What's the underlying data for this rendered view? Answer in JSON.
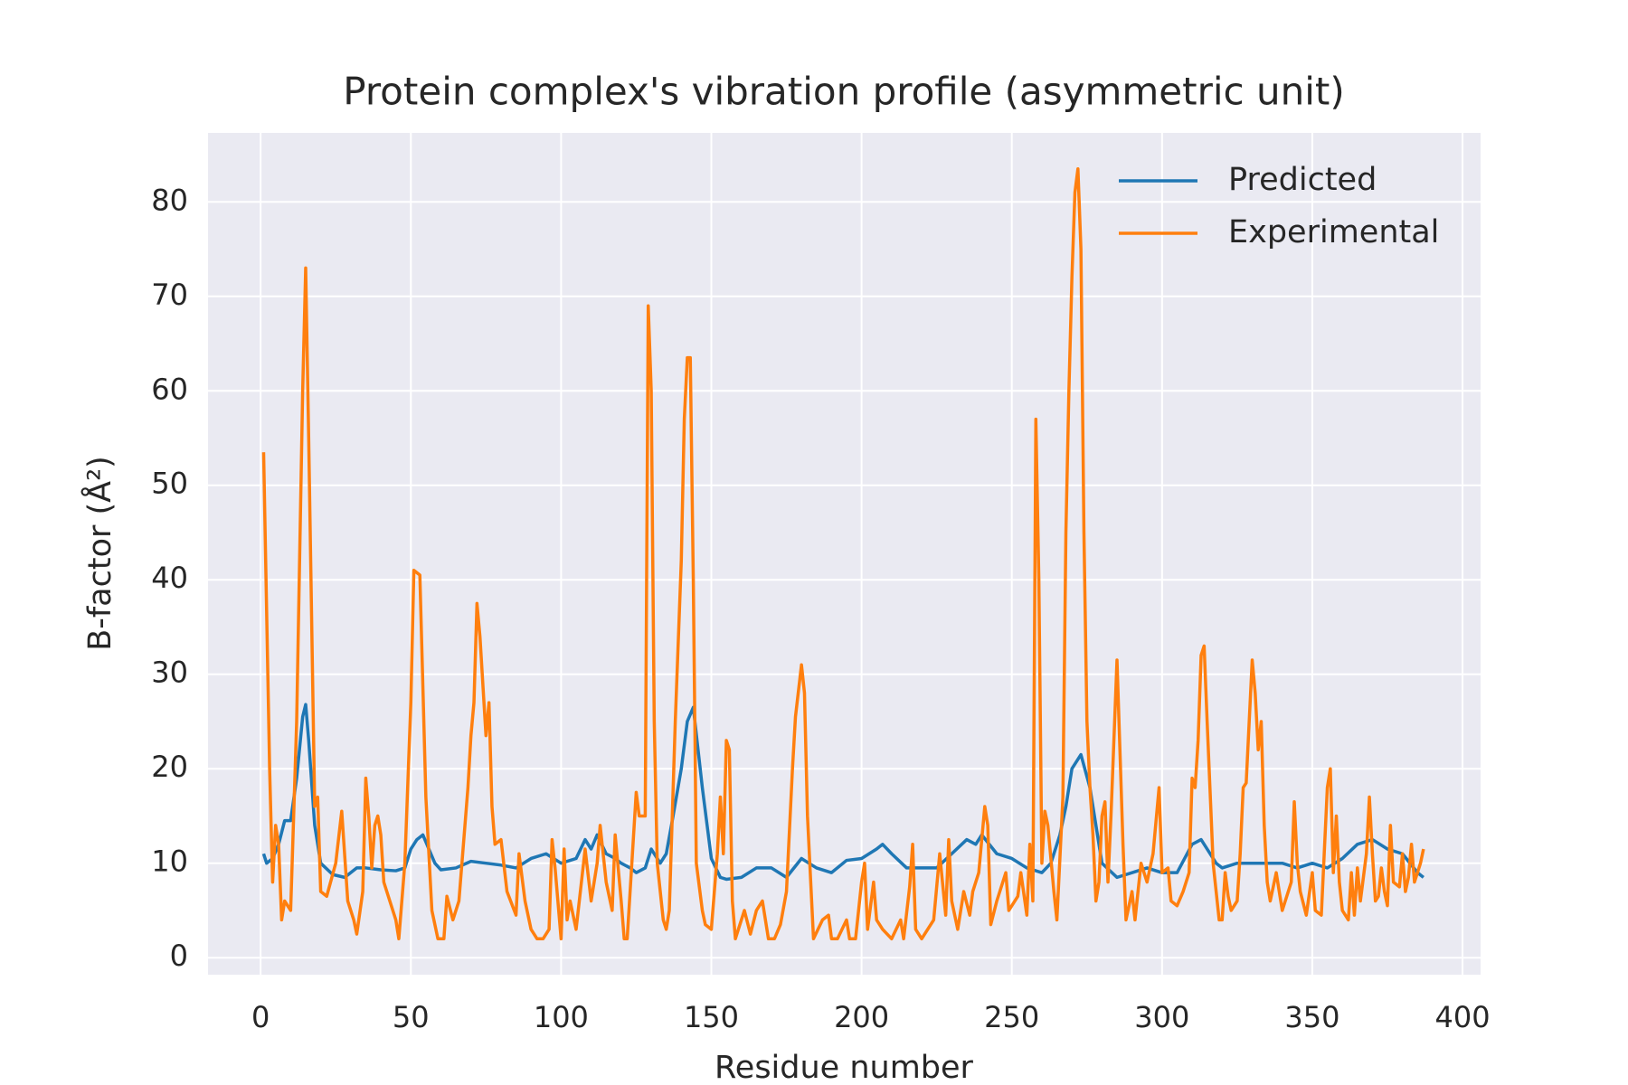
{
  "chart_data": {
    "type": "line",
    "title": "Protein complex's vibration profile (asymmetric unit)",
    "x_label": "Residue number",
    "y_label": "B-factor (Å²)",
    "xlim": [
      -17.5,
      406
    ],
    "ylim": [
      -1.8,
      87.3
    ],
    "xticks": [
      0,
      50,
      100,
      150,
      200,
      250,
      300,
      350,
      400
    ],
    "yticks": [
      0,
      10,
      20,
      30,
      40,
      50,
      60,
      70,
      80
    ],
    "grid": true,
    "legend_position": "upper right",
    "series": [
      {
        "name": "Predicted",
        "color": "#1f77b4",
        "x": [
          1,
          2,
          4,
          6,
          8,
          10,
          12,
          14,
          15,
          16,
          18,
          20,
          24,
          28,
          32,
          35,
          40,
          45,
          48,
          50,
          52,
          54,
          56,
          58,
          60,
          65,
          70,
          75,
          80,
          85,
          90,
          95,
          100,
          105,
          108,
          110,
          112,
          115,
          118,
          120,
          123,
          125,
          128,
          130,
          133,
          135,
          137,
          140,
          142,
          144,
          147,
          150,
          153,
          155,
          160,
          165,
          170,
          175,
          180,
          185,
          190,
          195,
          200,
          205,
          207,
          210,
          215,
          220,
          225,
          230,
          235,
          238,
          240,
          245,
          250,
          255,
          260,
          263,
          266,
          268,
          270,
          273,
          276,
          280,
          285,
          290,
          295,
          300,
          305,
          310,
          313,
          318,
          320,
          325,
          330,
          335,
          340,
          345,
          350,
          355,
          360,
          365,
          370,
          375,
          380,
          385,
          387
        ],
        "values": [
          11,
          10,
          10.5,
          12,
          14.5,
          14.5,
          19,
          25.5,
          26.8,
          23,
          14,
          10,
          8.8,
          8.5,
          9.5,
          9.5,
          9.3,
          9.2,
          9.5,
          11.5,
          12.5,
          13,
          11.5,
          10,
          9.3,
          9.5,
          10.2,
          10,
          9.8,
          9.5,
          10.5,
          11,
          10,
          10.5,
          12.5,
          11.5,
          13,
          11,
          10.5,
          10,
          9.5,
          9,
          9.5,
          11.5,
          10,
          11,
          14.5,
          20,
          25,
          26.5,
          18,
          10.5,
          8.5,
          8.3,
          8.5,
          9.5,
          9.5,
          8.5,
          10.5,
          9.5,
          9,
          10.3,
          10.5,
          11.5,
          12,
          11,
          9.5,
          9.5,
          9.5,
          11,
          12.5,
          12,
          13,
          11,
          10.5,
          9.5,
          9,
          10,
          13,
          16,
          20,
          21.5,
          18,
          10,
          8.5,
          9,
          9.5,
          9,
          9,
          12,
          12.5,
          10,
          9.5,
          10,
          10,
          10,
          10,
          9.5,
          10,
          9.5,
          10.5,
          12,
          12.5,
          11.5,
          11,
          9,
          8.5
        ]
      },
      {
        "name": "Experimental",
        "color": "#ff7f0e",
        "x": [
          1,
          3,
          4,
          5,
          6,
          7,
          8,
          10,
          12,
          14,
          15,
          16,
          18,
          19,
          20,
          22,
          25,
          27,
          29,
          31,
          32,
          34,
          35,
          36,
          37,
          38,
          39,
          40,
          41,
          43,
          45,
          46,
          48,
          50,
          51,
          53,
          55,
          57,
          59,
          61,
          62,
          64,
          66,
          69,
          70,
          71,
          72,
          73,
          75,
          76,
          77,
          78,
          80,
          82,
          85,
          86,
          88,
          90,
          92,
          94,
          96,
          97,
          98,
          100,
          101,
          102,
          103,
          105,
          108,
          110,
          112,
          113,
          115,
          117,
          118,
          120,
          121,
          122,
          125,
          126,
          128,
          129,
          130,
          131,
          132,
          134,
          135,
          136,
          138,
          140,
          141,
          142,
          143,
          144,
          145,
          147,
          148,
          150,
          152,
          153,
          154,
          155,
          156,
          157,
          158,
          161,
          163,
          165,
          167,
          169,
          171,
          173,
          175,
          177,
          178,
          180,
          181,
          182,
          184,
          187,
          189,
          190,
          192,
          195,
          196,
          198,
          200,
          201,
          202,
          204,
          205,
          207,
          210,
          213,
          214,
          216,
          217,
          218,
          220,
          224,
          226,
          228,
          229,
          230,
          232,
          234,
          236,
          237,
          239,
          241,
          242,
          243,
          245,
          248,
          249,
          252,
          253,
          255,
          256,
          257,
          258,
          259,
          260,
          261,
          262,
          264,
          265,
          267,
          268,
          269,
          270,
          271,
          272,
          273,
          274,
          275,
          276,
          277,
          278,
          279,
          280,
          281,
          282,
          283,
          285,
          287,
          288,
          290,
          291,
          293,
          295,
          297,
          299,
          300,
          302,
          303,
          305,
          307,
          309,
          310,
          311,
          312,
          313,
          314,
          315,
          317,
          318,
          319,
          320,
          321,
          322,
          323,
          325,
          326,
          327,
          328,
          329,
          330,
          331,
          332,
          333,
          334,
          335,
          336,
          338,
          339,
          340,
          341,
          343,
          344,
          345,
          346,
          348,
          350,
          351,
          353,
          355,
          356,
          357,
          358,
          359,
          360,
          362,
          363,
          364,
          365,
          366,
          368,
          369,
          370,
          371,
          372,
          373,
          374,
          375,
          376,
          377,
          379,
          380,
          381,
          382,
          383,
          384,
          386,
          387
        ],
        "values": [
          53.5,
          20,
          8,
          14,
          12,
          4,
          6,
          5,
          25,
          60,
          73,
          55,
          16,
          17,
          7,
          6.5,
          10,
          15.5,
          6,
          4,
          2.5,
          7,
          19,
          15,
          9.5,
          14,
          15,
          13,
          8,
          6,
          4,
          2,
          10,
          27,
          41,
          40.5,
          17,
          5,
          2,
          2,
          6.5,
          4,
          6,
          18,
          23.5,
          27,
          37.5,
          34,
          23.5,
          27,
          16,
          12,
          12.5,
          7,
          4.5,
          11,
          6,
          3,
          2,
          2,
          3,
          12.5,
          9.5,
          2,
          11.5,
          4,
          6,
          3,
          11.5,
          6,
          10,
          14,
          8,
          5,
          13,
          6,
          2,
          2,
          17.5,
          15,
          15,
          69,
          60,
          25,
          10,
          4,
          3,
          5,
          25,
          42,
          57,
          63.5,
          63.5,
          40,
          10,
          5,
          3.5,
          3,
          11,
          17,
          11,
          23,
          22,
          6,
          2,
          5,
          2.5,
          5,
          6,
          2,
          2,
          3.5,
          7,
          20,
          25.5,
          31,
          28,
          15,
          2,
          4,
          4.5,
          2,
          2,
          4,
          2,
          2,
          8,
          10,
          3,
          8,
          4,
          3,
          2,
          4,
          2,
          7.5,
          12,
          3,
          2,
          4,
          11,
          4.5,
          12.5,
          6,
          3,
          7,
          4.5,
          7,
          9,
          16,
          14,
          3.5,
          6,
          9,
          5,
          6.5,
          9,
          4.5,
          12,
          6,
          57,
          40,
          10,
          15.5,
          14,
          7,
          4,
          17,
          45,
          60,
          72,
          81,
          83.5,
          75,
          45,
          25,
          18,
          13,
          6,
          8,
          15,
          16.5,
          8,
          15,
          31.5,
          12,
          4,
          7,
          4,
          10,
          8,
          11,
          18,
          9,
          9.5,
          6,
          5.5,
          7,
          9,
          19,
          18,
          23,
          32,
          33,
          25,
          10,
          7,
          4,
          4,
          9,
          6.5,
          5,
          6,
          11,
          18,
          18.5,
          25,
          31.5,
          28,
          22,
          25,
          14,
          8,
          6,
          9,
          7,
          5,
          6,
          8,
          16.5,
          10,
          7,
          4.5,
          9,
          5,
          4.5,
          18,
          20,
          9,
          15,
          8,
          5,
          4,
          9,
          4.5,
          9.5,
          6,
          11,
          17,
          11,
          6,
          6.5,
          9.5,
          7,
          5.5,
          14,
          8,
          7.5,
          11,
          7,
          8.5,
          12,
          8,
          10,
          11.5
        ]
      }
    ]
  }
}
